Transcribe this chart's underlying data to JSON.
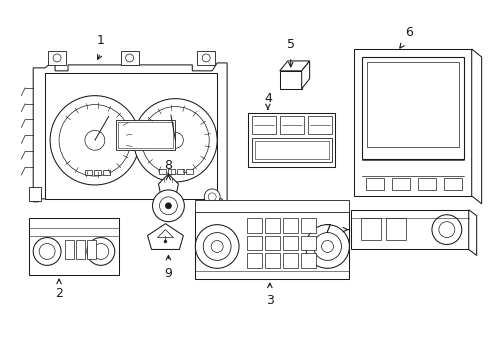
{
  "bg_color": "#ffffff",
  "line_color": "#1a1a1a",
  "lw": 0.75,
  "fig_width": 4.89,
  "fig_height": 3.6,
  "dpi": 100
}
